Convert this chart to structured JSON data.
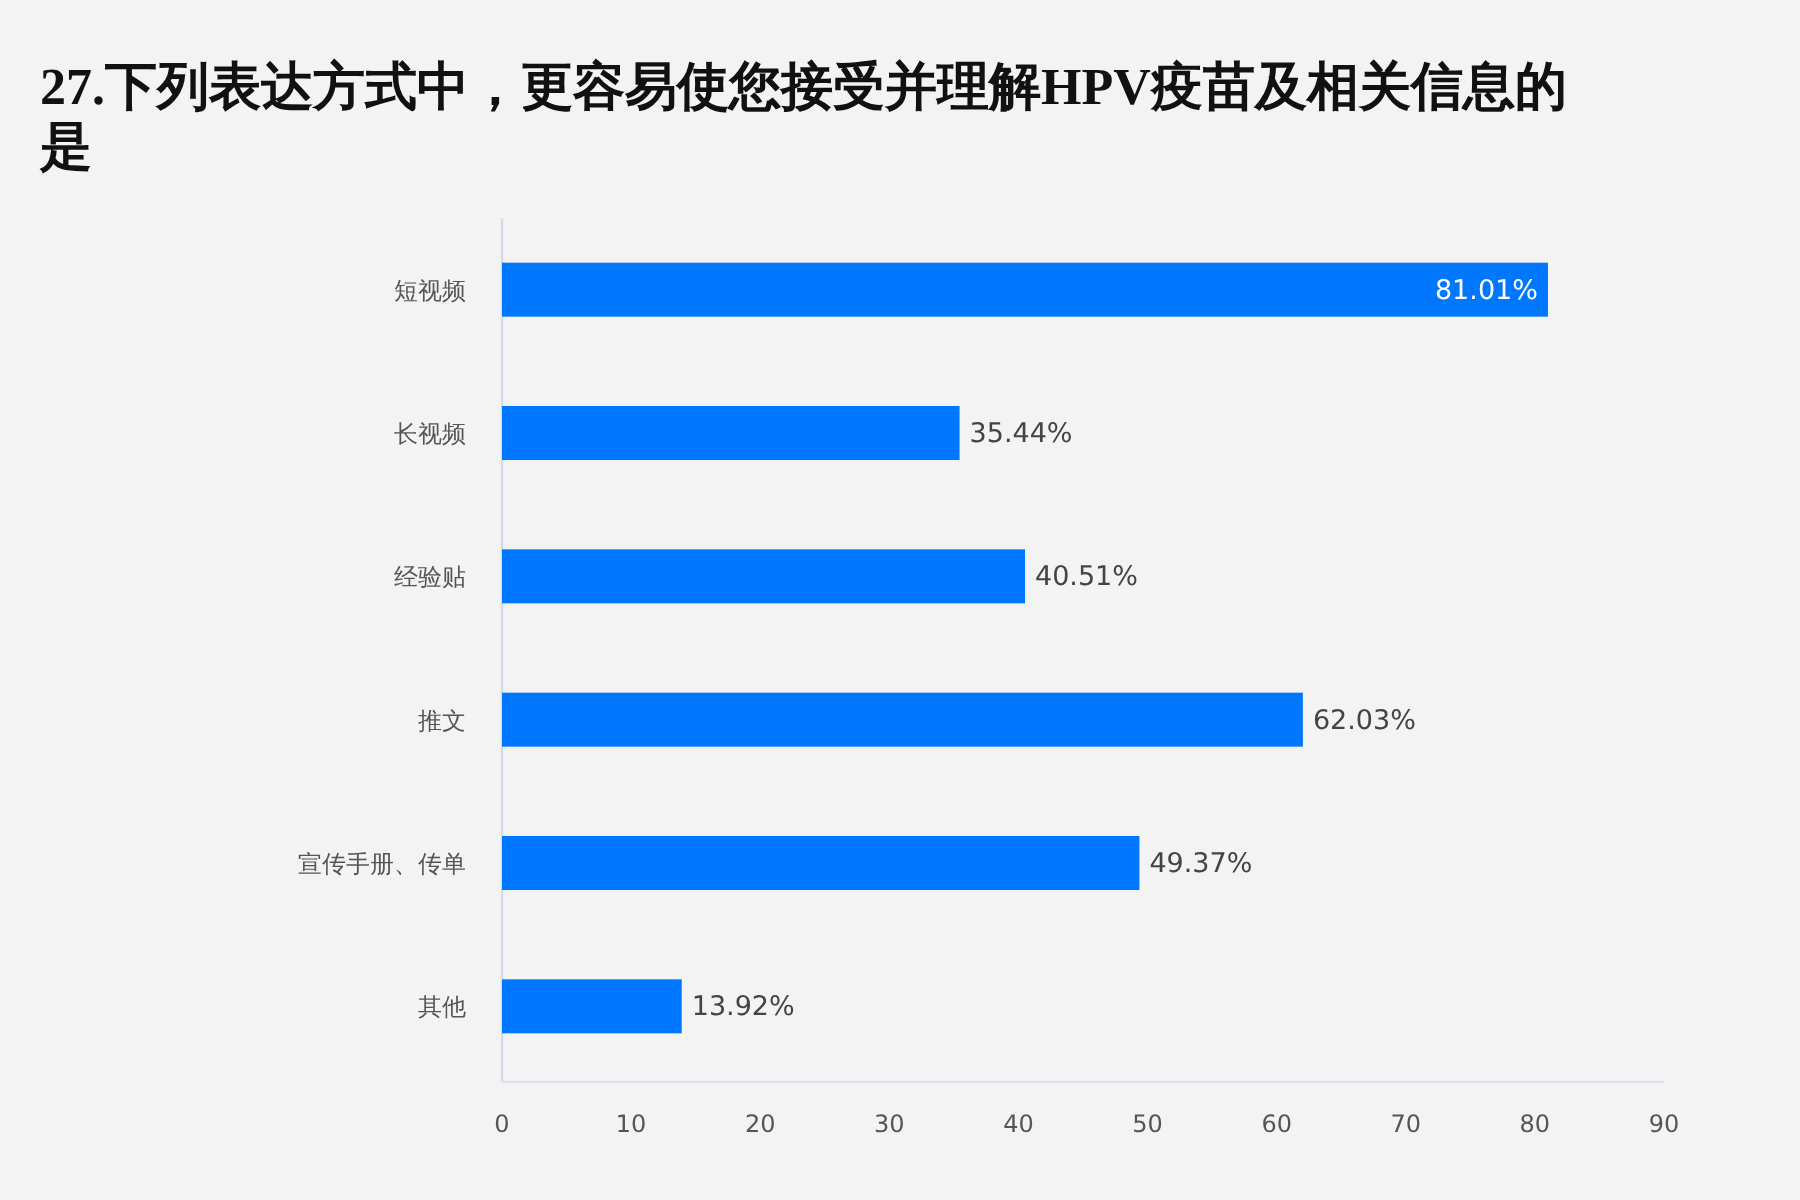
{
  "chart_data": {
    "type": "bar",
    "orientation": "horizontal",
    "title": "27.下列表达方式中，更容易使您接受并理解HPV疫苗及相关信息的是",
    "categories": [
      "短视频",
      "长视频",
      "经验贴",
      "推文",
      "宣传手册、传单",
      "其他"
    ],
    "values": [
      81.01,
      35.44,
      40.51,
      62.03,
      49.37,
      13.92
    ],
    "value_labels": [
      "81.01%",
      "35.44%",
      "40.51%",
      "62.03%",
      "49.37%",
      "13.92%"
    ],
    "color": "#0077ff",
    "xlim": [
      0,
      90
    ],
    "xticks": [
      0,
      10,
      20,
      30,
      40,
      50,
      60,
      70,
      80,
      90
    ]
  }
}
